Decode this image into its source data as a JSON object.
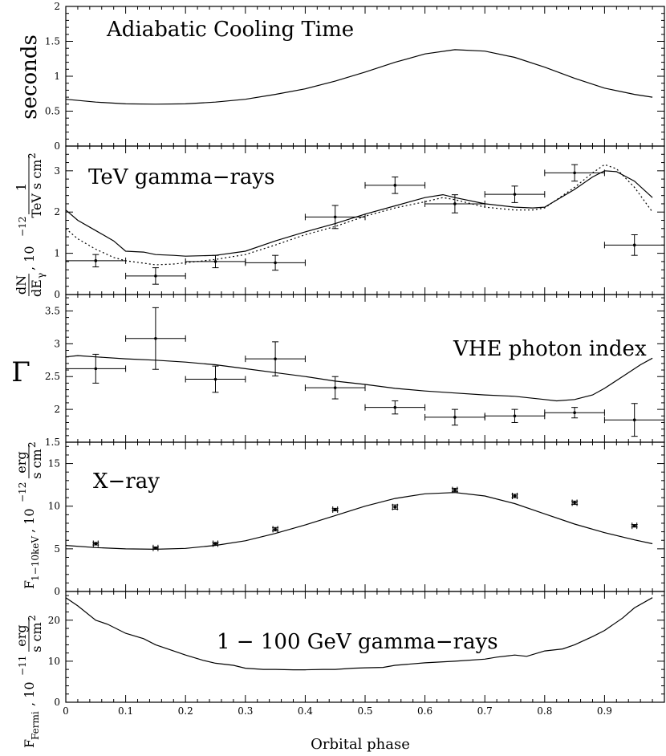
{
  "figure": {
    "xlabel": "Orbital phase"
  },
  "chart_data": [
    {
      "id": "adiabatic",
      "type": "line",
      "title": "Adiabatic Cooling Time",
      "ylabel": "seconds",
      "xlim": [
        0,
        1
      ],
      "ylim": [
        0,
        2
      ],
      "xticks": [
        0,
        0.1,
        0.2,
        0.3,
        0.4,
        0.5,
        0.6,
        0.7,
        0.8,
        0.9
      ],
      "yticks": [
        0,
        0.5,
        1,
        1.5,
        2
      ],
      "series": [
        {
          "name": "model",
          "style": "solid",
          "x": [
            0,
            0.05,
            0.1,
            0.15,
            0.2,
            0.25,
            0.3,
            0.35,
            0.4,
            0.45,
            0.5,
            0.55,
            0.6,
            0.65,
            0.7,
            0.75,
            0.8,
            0.85,
            0.9,
            0.95,
            0.98
          ],
          "y": [
            0.67,
            0.63,
            0.605,
            0.6,
            0.605,
            0.63,
            0.67,
            0.74,
            0.82,
            0.93,
            1.06,
            1.2,
            1.32,
            1.38,
            1.36,
            1.27,
            1.13,
            0.97,
            0.83,
            0.74,
            0.7
          ]
        }
      ]
    },
    {
      "id": "tev",
      "type": "line",
      "title": "TeV gamma−rays",
      "ylabel_parts": {
        "lhs_num": "dN",
        "lhs_den": "dE",
        "lhs_den_sub": "γ",
        "mid": ", 10",
        "exp": "−12",
        "frac_num": "1",
        "frac_den": "TeV s cm",
        "frac_den_sup": "2"
      },
      "xlim": [
        0,
        1
      ],
      "ylim": [
        0,
        3.6
      ],
      "xticks": [
        0,
        0.1,
        0.2,
        0.3,
        0.4,
        0.5,
        0.6,
        0.7,
        0.8,
        0.9
      ],
      "yticks": [
        0,
        1,
        2,
        3
      ],
      "series": [
        {
          "name": "model",
          "style": "solid",
          "x": [
            0,
            0.02,
            0.05,
            0.08,
            0.1,
            0.13,
            0.15,
            0.18,
            0.2,
            0.25,
            0.3,
            0.35,
            0.4,
            0.45,
            0.5,
            0.55,
            0.6,
            0.63,
            0.65,
            0.7,
            0.75,
            0.78,
            0.8,
            0.85,
            0.88,
            0.9,
            0.92,
            0.95,
            0.98
          ],
          "y": [
            2.05,
            1.8,
            1.55,
            1.3,
            1.05,
            1.03,
            0.97,
            0.95,
            0.93,
            0.95,
            1.05,
            1.3,
            1.52,
            1.72,
            1.95,
            2.15,
            2.35,
            2.42,
            2.35,
            2.2,
            2.12,
            2.1,
            2.12,
            2.55,
            2.85,
            3.0,
            2.98,
            2.75,
            2.35
          ]
        },
        {
          "name": "model-alt",
          "style": "dotted",
          "x": [
            0,
            0.02,
            0.05,
            0.08,
            0.1,
            0.13,
            0.15,
            0.18,
            0.2,
            0.25,
            0.3,
            0.35,
            0.4,
            0.45,
            0.5,
            0.55,
            0.6,
            0.63,
            0.65,
            0.7,
            0.75,
            0.78,
            0.8,
            0.85,
            0.88,
            0.9,
            0.92,
            0.95,
            0.98
          ],
          "y": [
            1.6,
            1.35,
            1.1,
            0.9,
            0.82,
            0.76,
            0.72,
            0.74,
            0.77,
            0.85,
            0.97,
            1.2,
            1.45,
            1.65,
            1.9,
            2.1,
            2.25,
            2.35,
            2.3,
            2.12,
            2.05,
            2.05,
            2.1,
            2.6,
            2.95,
            3.15,
            3.05,
            2.6,
            2.0
          ]
        },
        {
          "name": "data",
          "style": "errorbars",
          "x": [
            0.05,
            0.15,
            0.25,
            0.35,
            0.45,
            0.55,
            0.65,
            0.75,
            0.85,
            0.95
          ],
          "xerr": [
            0.05,
            0.05,
            0.05,
            0.05,
            0.05,
            0.05,
            0.05,
            0.05,
            0.05,
            0.05
          ],
          "y": [
            0.82,
            0.45,
            0.8,
            0.77,
            1.88,
            2.65,
            2.2,
            2.43,
            2.95,
            1.2
          ],
          "yerr": [
            0.15,
            0.2,
            0.15,
            0.18,
            0.28,
            0.2,
            0.22,
            0.2,
            0.2,
            0.25
          ]
        }
      ]
    },
    {
      "id": "vhe-index",
      "type": "line",
      "title": "VHE photon index",
      "ylabel": "Γ",
      "xlim": [
        0,
        1
      ],
      "ylim": [
        1.5,
        3.75
      ],
      "xticks": [
        0,
        0.1,
        0.2,
        0.3,
        0.4,
        0.5,
        0.6,
        0.7,
        0.8,
        0.9
      ],
      "yticks": [
        1.5,
        2,
        2.5,
        3,
        3.5
      ],
      "series": [
        {
          "name": "model",
          "style": "solid",
          "x": [
            0,
            0.02,
            0.05,
            0.1,
            0.15,
            0.2,
            0.25,
            0.3,
            0.35,
            0.4,
            0.45,
            0.5,
            0.55,
            0.6,
            0.65,
            0.7,
            0.75,
            0.8,
            0.82,
            0.85,
            0.88,
            0.9,
            0.93,
            0.96,
            0.98
          ],
          "y": [
            2.8,
            2.82,
            2.8,
            2.77,
            2.75,
            2.72,
            2.68,
            2.62,
            2.56,
            2.5,
            2.43,
            2.38,
            2.32,
            2.28,
            2.25,
            2.22,
            2.2,
            2.15,
            2.13,
            2.15,
            2.22,
            2.32,
            2.5,
            2.68,
            2.78
          ]
        },
        {
          "name": "data",
          "style": "errorbars",
          "x": [
            0.05,
            0.15,
            0.25,
            0.35,
            0.45,
            0.55,
            0.65,
            0.75,
            0.85,
            0.95
          ],
          "xerr": [
            0.05,
            0.05,
            0.05,
            0.05,
            0.05,
            0.05,
            0.05,
            0.05,
            0.05,
            0.05
          ],
          "y": [
            2.62,
            3.08,
            2.46,
            2.77,
            2.33,
            2.03,
            1.88,
            1.9,
            1.95,
            1.84
          ],
          "yerr": [
            0.22,
            0.47,
            0.2,
            0.26,
            0.17,
            0.1,
            0.12,
            0.1,
            0.08,
            0.25
          ]
        }
      ]
    },
    {
      "id": "xray",
      "type": "line",
      "title": "X−ray",
      "ylabel_parts": {
        "lhs": "F",
        "lhs_sub": "1−10keV",
        "mid": ", 10",
        "exp": "−12",
        "frac_num": "erg",
        "frac_den": "s cm",
        "frac_den_sup": "2"
      },
      "xlim": [
        0,
        1
      ],
      "ylim": [
        0,
        17.5
      ],
      "xticks": [
        0,
        0.1,
        0.2,
        0.3,
        0.4,
        0.5,
        0.6,
        0.7,
        0.8,
        0.9
      ],
      "yticks": [
        0,
        5,
        10,
        15
      ],
      "series": [
        {
          "name": "model",
          "style": "solid",
          "x": [
            0,
            0.05,
            0.1,
            0.15,
            0.2,
            0.25,
            0.3,
            0.35,
            0.4,
            0.45,
            0.5,
            0.55,
            0.6,
            0.65,
            0.7,
            0.75,
            0.8,
            0.85,
            0.9,
            0.95,
            0.98
          ],
          "y": [
            5.4,
            5.15,
            5.0,
            4.95,
            5.05,
            5.4,
            5.95,
            6.8,
            7.8,
            8.9,
            10.0,
            10.9,
            11.45,
            11.6,
            11.2,
            10.3,
            9.1,
            7.9,
            6.9,
            6.05,
            5.6
          ]
        },
        {
          "name": "data",
          "style": "errorbars",
          "x": [
            0.05,
            0.15,
            0.25,
            0.35,
            0.45,
            0.55,
            0.65,
            0.75,
            0.85,
            0.95
          ],
          "xerr": [
            0.004,
            0.004,
            0.004,
            0.004,
            0.004,
            0.004,
            0.004,
            0.004,
            0.004,
            0.004
          ],
          "y": [
            5.6,
            5.1,
            5.6,
            7.3,
            9.6,
            9.9,
            11.9,
            11.2,
            10.4,
            7.7
          ],
          "yerr": [
            0.15,
            0.12,
            0.15,
            0.2,
            0.15,
            0.25,
            0.2,
            0.2,
            0.2,
            0.15
          ]
        }
      ]
    },
    {
      "id": "fermi",
      "type": "line",
      "title": "1 − 100 GeV gamma−rays",
      "ylabel_parts": {
        "lhs": "F",
        "lhs_sub": "Fermi",
        "mid": ", 10",
        "exp": "−11",
        "frac_num": "erg",
        "frac_den": "s cm",
        "frac_den_sup": "2"
      },
      "xlim": [
        0,
        1
      ],
      "ylim": [
        0,
        27
      ],
      "xticks": [
        0,
        0.1,
        0.2,
        0.3,
        0.4,
        0.5,
        0.6,
        0.7,
        0.8,
        0.9
      ],
      "xticklabels": [
        "0",
        "0.1",
        "0.2",
        "0.3",
        "0.4",
        "0.5",
        "0.6",
        "0.7",
        "0.8",
        "0.9"
      ],
      "yticks": [
        0,
        10,
        20
      ],
      "series": [
        {
          "name": "model",
          "style": "solid",
          "x": [
            0,
            0.02,
            0.05,
            0.07,
            0.1,
            0.13,
            0.15,
            0.18,
            0.2,
            0.23,
            0.25,
            0.28,
            0.3,
            0.33,
            0.35,
            0.38,
            0.4,
            0.43,
            0.45,
            0.48,
            0.5,
            0.53,
            0.55,
            0.6,
            0.65,
            0.7,
            0.72,
            0.75,
            0.77,
            0.8,
            0.83,
            0.85,
            0.88,
            0.9,
            0.93,
            0.95,
            0.98
          ],
          "y": [
            25.5,
            23.5,
            20.0,
            19.0,
            16.8,
            15.5,
            14.0,
            12.5,
            11.5,
            10.2,
            9.5,
            9.0,
            8.3,
            8.0,
            8.0,
            7.9,
            7.9,
            8.0,
            8.0,
            8.3,
            8.4,
            8.5,
            9.0,
            9.6,
            10.0,
            10.5,
            11.0,
            11.5,
            11.2,
            12.5,
            13.0,
            14.0,
            16.0,
            17.5,
            20.5,
            23.0,
            25.5
          ]
        }
      ]
    }
  ]
}
